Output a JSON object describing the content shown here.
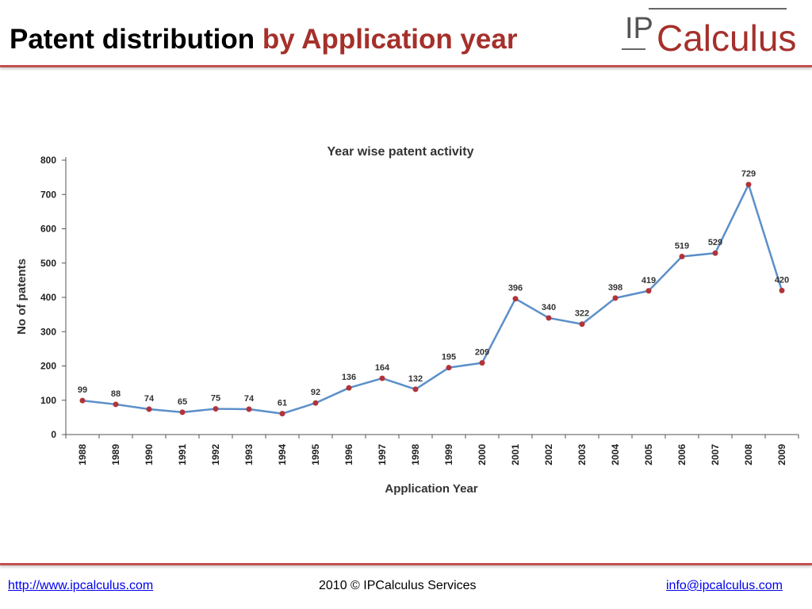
{
  "header": {
    "title_main": "Patent distribution",
    "title_accent": "by Application year",
    "logo_text_ip": "IP",
    "logo_text_rest": "Calculus"
  },
  "footer": {
    "website": "http://www.ipcalculus.com",
    "copyright": "2010 © IPCalculus Services",
    "email": "info@ipcalculus.com"
  },
  "colors": {
    "accent": "#a5302b",
    "rule": "#c0504d",
    "line": "#5b8fc9",
    "marker": "#b0343a"
  },
  "chart_data": {
    "type": "line",
    "title": "Year wise patent activity",
    "xlabel": "Application Year",
    "ylabel": "No of patents",
    "ylim": [
      0,
      800
    ],
    "yticks": [
      0,
      100,
      200,
      300,
      400,
      500,
      600,
      700,
      800
    ],
    "grid": false,
    "categories": [
      "1988",
      "1989",
      "1990",
      "1991",
      "1992",
      "1993",
      "1994",
      "1995",
      "1996",
      "1997",
      "1998",
      "1999",
      "2000",
      "2001",
      "2002",
      "2003",
      "2004",
      "2005",
      "2006",
      "2007",
      "2008",
      "2009"
    ],
    "values": [
      99,
      88,
      74,
      65,
      75,
      74,
      61,
      92,
      136,
      164,
      132,
      195,
      209,
      396,
      340,
      322,
      398,
      419,
      519,
      529,
      729,
      420
    ]
  }
}
